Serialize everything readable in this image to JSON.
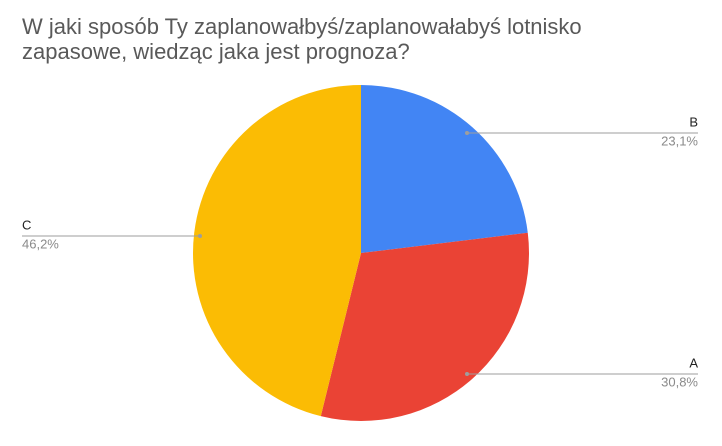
{
  "chart_data": {
    "type": "pie",
    "title": "W jaki sposób Ty zaplanowałbyś/zaplanowałabyś lotnisko zapasowe, wiedząc jaka jest prognoza?",
    "categories": [
      "B",
      "A",
      "C"
    ],
    "values": [
      23.1,
      30.8,
      46.2
    ],
    "value_labels": [
      "23,1%",
      "30,8%",
      "46,2%"
    ],
    "colors": [
      "#4285f4",
      "#ea4335",
      "#fbbc04"
    ]
  }
}
